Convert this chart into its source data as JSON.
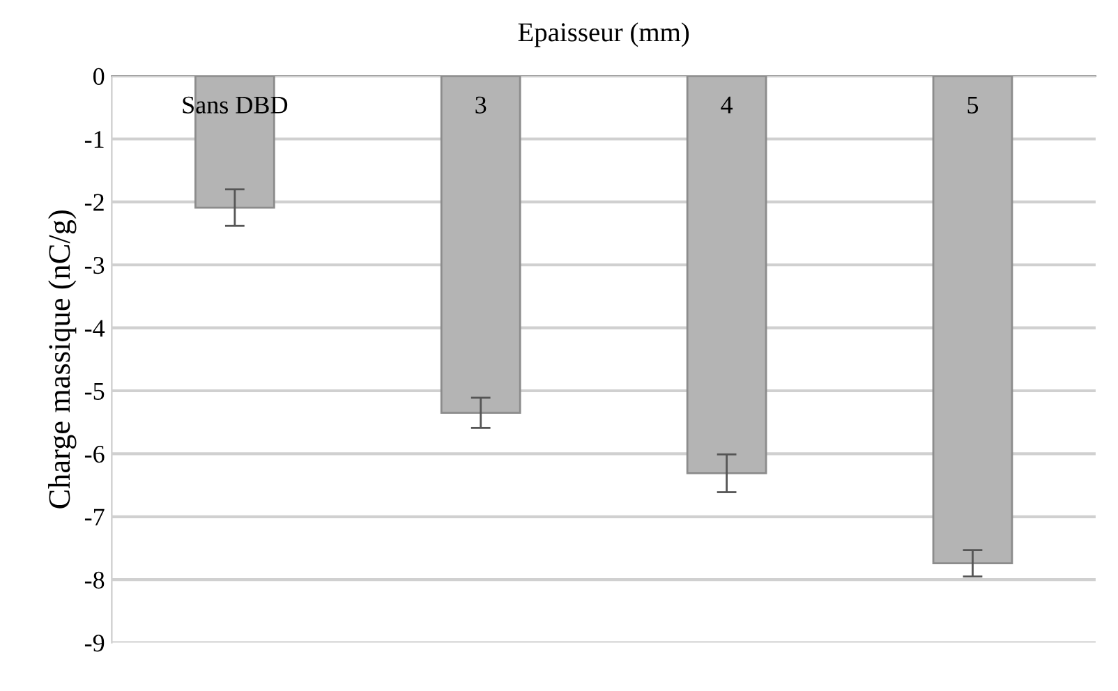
{
  "chart_data": {
    "type": "bar",
    "xlabel": "Epaisseur (mm)",
    "ylabel": "Charge massique (nC/g)",
    "categories": [
      "Sans DBD",
      "3",
      "4",
      "5"
    ],
    "values": [
      -2.09,
      -5.35,
      -6.31,
      -7.74
    ],
    "errors": [
      0.29,
      0.24,
      0.3,
      0.21
    ],
    "color": "#b4b4b4",
    "ylim": [
      -9,
      0
    ],
    "yticks": [
      0,
      -1,
      -2,
      -3,
      -4,
      -5,
      -6,
      -7,
      -8,
      -9
    ],
    "grid": "y",
    "legend": false
  }
}
